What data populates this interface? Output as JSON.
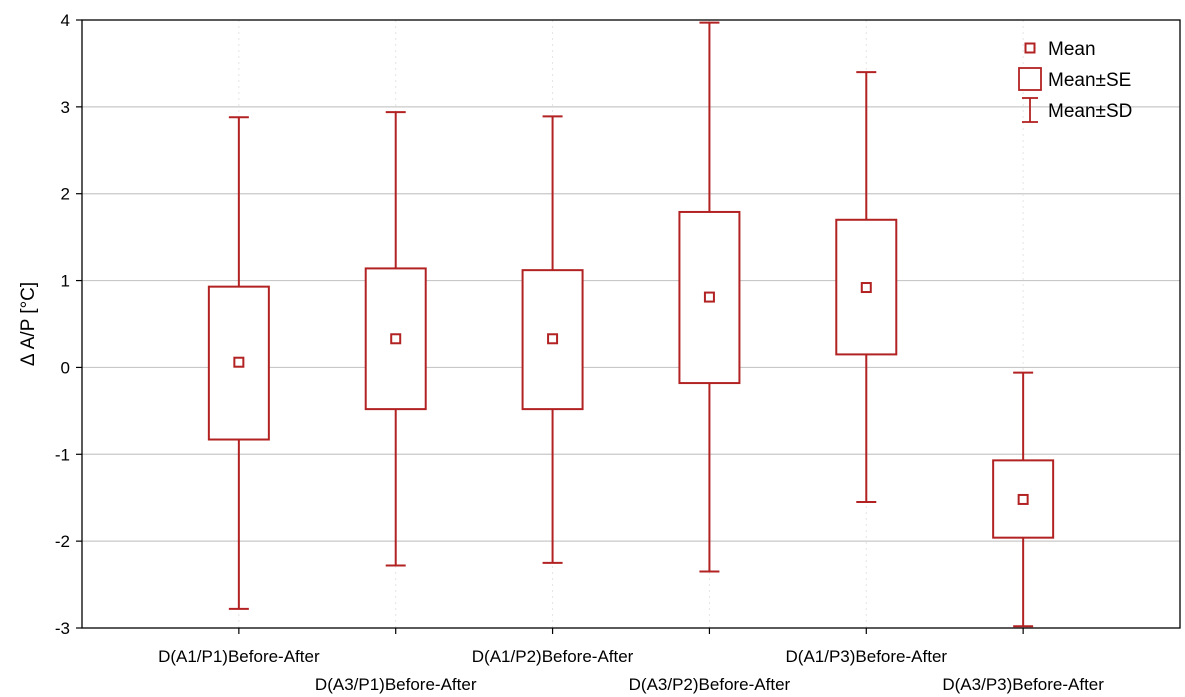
{
  "chart_data": {
    "type": "box",
    "title": "",
    "xlabel": "",
    "ylabel": "Δ A/P [°C]",
    "ylim": [
      -3,
      4
    ],
    "yticks": [
      "-3",
      "-2",
      "-1",
      "0",
      "1",
      "2",
      "3",
      "4"
    ],
    "grid": true,
    "legend_position": "top-right",
    "color": "#b22222",
    "legend": [
      {
        "symbol": "mean",
        "label": "Mean"
      },
      {
        "symbol": "se",
        "label": "Mean±SE"
      },
      {
        "symbol": "sd",
        "label": "Mean±SD"
      }
    ],
    "categories": [
      "D(A1/P1)Before-After",
      "D(A3/P1)Before-After",
      "D(A1/P2)Before-After",
      "D(A3/P2)Before-After",
      "D(A1/P3)Before-After",
      "D(A3/P3)Before-After"
    ],
    "series": [
      {
        "category": "D(A1/P1)Before-After",
        "mean": 0.06,
        "se_low": -0.83,
        "se_high": 0.93,
        "sd_low": -2.78,
        "sd_high": 2.88
      },
      {
        "category": "D(A3/P1)Before-After",
        "mean": 0.33,
        "se_low": -0.48,
        "se_high": 1.14,
        "sd_low": -2.28,
        "sd_high": 2.94
      },
      {
        "category": "D(A1/P2)Before-After",
        "mean": 0.33,
        "se_low": -0.48,
        "se_high": 1.12,
        "sd_low": -2.25,
        "sd_high": 2.89
      },
      {
        "category": "D(A3/P2)Before-After",
        "mean": 0.81,
        "se_low": -0.18,
        "se_high": 1.79,
        "sd_low": -2.35,
        "sd_high": 3.97
      },
      {
        "category": "D(A1/P3)Before-After",
        "mean": 0.92,
        "se_low": 0.15,
        "se_high": 1.7,
        "sd_low": -1.55,
        "sd_high": 3.4
      },
      {
        "category": "D(A3/P3)Before-After",
        "mean": -1.52,
        "se_low": -1.96,
        "se_high": -1.07,
        "sd_low": -2.98,
        "sd_high": -0.06
      }
    ]
  }
}
